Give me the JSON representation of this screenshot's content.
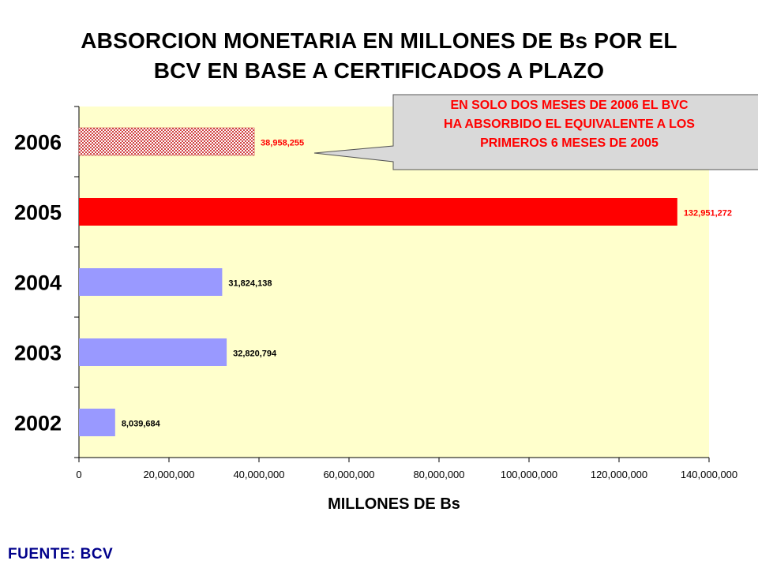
{
  "title_line1": "ABSORCION MONETARIA EN MILLONES DE Bs POR EL",
  "title_line2": "BCV EN BASE A CERTIFICADOS A PLAZO",
  "source": "FUENTE: BCV",
  "callout": {
    "line1": "EN SOLO DOS MESES DE 2006 EL BVC",
    "line2": "HA ABSORBIDO EL EQUIVALENTE A LOS",
    "line3": "PRIMEROS 6 MESES DE 2005"
  },
  "colors": {
    "plot_bg": "#ffffcc",
    "bar_default": "#9999ff",
    "bar_2005": "#ff0000",
    "bar_2006_pattern": "#cc3333",
    "label_red": "#ff0000",
    "callout_bg": "#d9d9d9"
  },
  "chart_data": {
    "type": "bar",
    "orientation": "horizontal",
    "categories": [
      "2006",
      "2005",
      "2004",
      "2003",
      "2002"
    ],
    "values": [
      38958255,
      132951272,
      31824138,
      32820794,
      8039684
    ],
    "data_labels": [
      "38,958,255",
      "132,951,272",
      "31,824,138",
      "32,820,794",
      "8,039,684"
    ],
    "xlabel": "MILLONES DE Bs",
    "ylabel": "",
    "xlim": [
      0,
      140000000
    ],
    "x_ticks": [
      0,
      20000000,
      40000000,
      60000000,
      80000000,
      100000000,
      120000000,
      140000000
    ],
    "x_tick_labels": [
      "0",
      "20,000,000",
      "40,000,000",
      "60,000,000",
      "80,000,000",
      "100,000,000",
      "120,000,000",
      "140,000,000"
    ],
    "grid": false,
    "legend": "none"
  }
}
